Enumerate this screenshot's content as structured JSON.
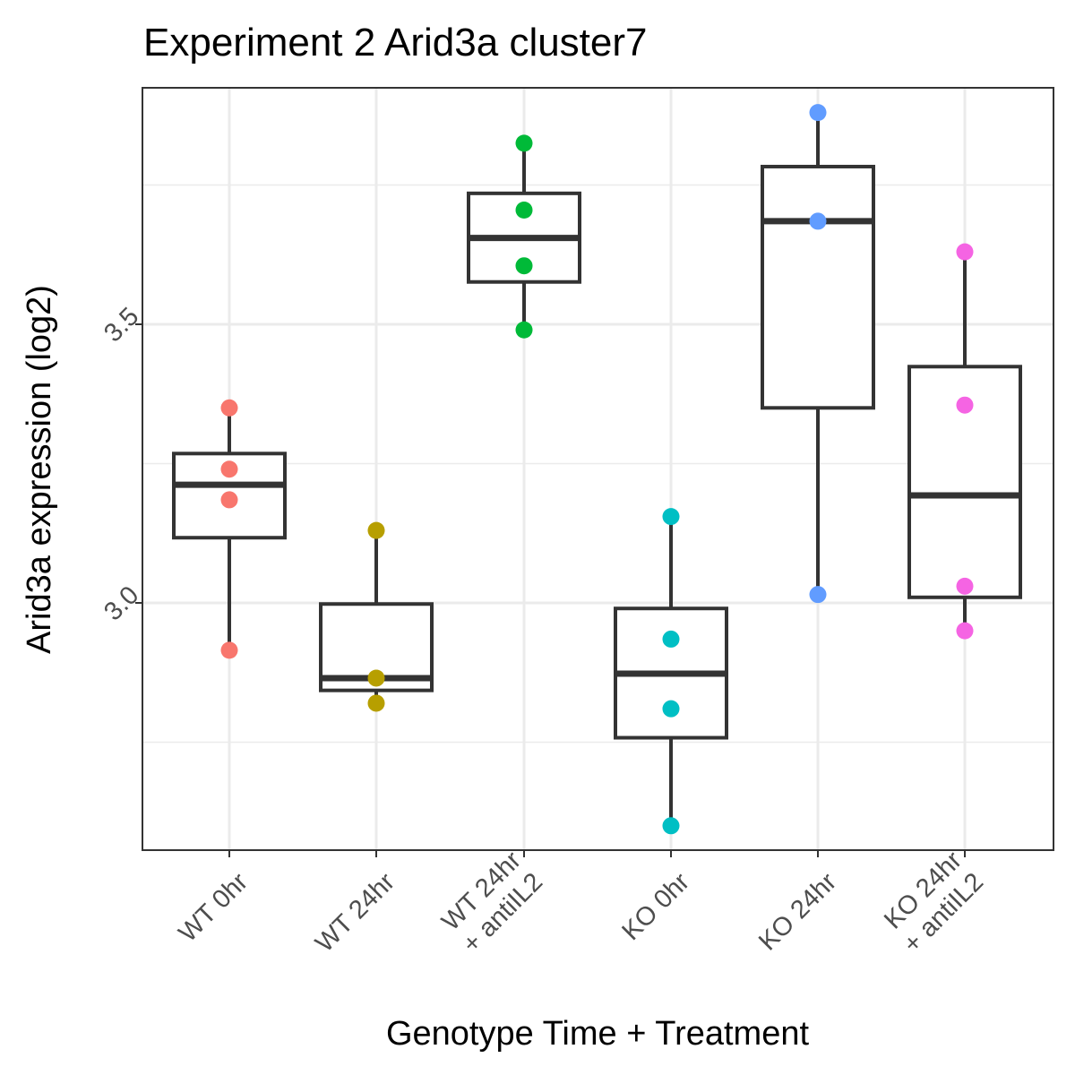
{
  "chart_data": {
    "type": "box",
    "title": "Experiment 2 Arid3a cluster7",
    "xlabel": "Genotype Time + Treatment",
    "ylabel": "Arid3a expression (log2)",
    "ylim": [
      2.56,
      3.93
    ],
    "yticks": [
      3.0,
      3.5
    ],
    "ytick_labels": [
      "3.0",
      "3.5"
    ],
    "grid": true,
    "legend": "none",
    "categories": [
      [
        "WT 0hr"
      ],
      [
        "WT 24hr"
      ],
      [
        "WT 24hr",
        "+ antiIL2"
      ],
      [
        "KO 0hr"
      ],
      [
        "KO 24hr"
      ],
      [
        "KO 24hr",
        "+ antiIL2"
      ]
    ],
    "series": [
      {
        "color": "#F8766D",
        "points": [
          3.35,
          3.24,
          3.185,
          2.915
        ],
        "box": {
          "lower_whisker": 2.915,
          "q1": 3.117,
          "median": 3.212,
          "q3": 3.268,
          "upper_whisker": 3.35
        }
      },
      {
        "color": "#B79F00",
        "points": [
          3.13,
          2.865,
          2.82
        ],
        "box": {
          "lower_whisker": 2.82,
          "q1": 2.843,
          "median": 2.865,
          "q3": 2.998,
          "upper_whisker": 3.13
        }
      },
      {
        "color": "#00BA38",
        "points": [
          3.825,
          3.705,
          3.605,
          3.49
        ],
        "box": {
          "lower_whisker": 3.49,
          "q1": 3.576,
          "median": 3.655,
          "q3": 3.735,
          "upper_whisker": 3.825
        }
      },
      {
        "color": "#00BFC4",
        "points": [
          3.155,
          2.935,
          2.81,
          2.6
        ],
        "box": {
          "lower_whisker": 2.6,
          "q1": 2.758,
          "median": 2.873,
          "q3": 2.99,
          "upper_whisker": 3.155
        }
      },
      {
        "color": "#619CFF",
        "points": [
          3.88,
          3.685,
          3.015
        ],
        "box": {
          "lower_whisker": 3.015,
          "q1": 3.35,
          "median": 3.685,
          "q3": 3.783,
          "upper_whisker": 3.88
        }
      },
      {
        "color": "#F564E3",
        "points": [
          3.63,
          3.355,
          3.03,
          2.95
        ],
        "box": {
          "lower_whisker": 2.95,
          "q1": 3.01,
          "median": 3.193,
          "q3": 3.424,
          "upper_whisker": 3.63
        }
      }
    ]
  }
}
